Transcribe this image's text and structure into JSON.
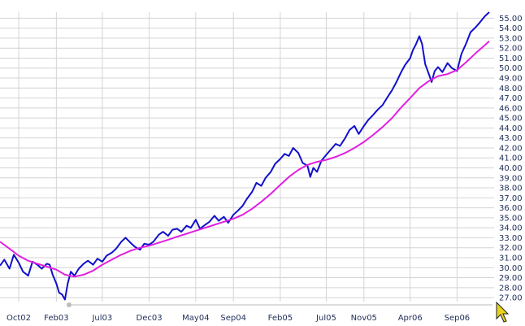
{
  "chart_data": {
    "type": "line",
    "title": "",
    "xlabel": "",
    "ylabel": "",
    "xlim": [
      "2002-08-01",
      "2006-12-31"
    ],
    "ylim": [
      26.6,
      55.6
    ],
    "y_axis_position": "right",
    "y_ticks": [
      27,
      28,
      29,
      30,
      31,
      32,
      33,
      34,
      35,
      36,
      37,
      38,
      39,
      40,
      41,
      42,
      43,
      44,
      45,
      46,
      47,
      48,
      49,
      50,
      51,
      52,
      53,
      54,
      55
    ],
    "x_ticks": [
      {
        "label": "Oct02",
        "date": "2002-10-01"
      },
      {
        "label": "Feb03",
        "date": "2003-02-01"
      },
      {
        "label": "Jul03",
        "date": "2003-07-01"
      },
      {
        "label": "Dec03",
        "date": "2003-12-01"
      },
      {
        "label": "May04",
        "date": "2004-05-01"
      },
      {
        "label": "Sep04",
        "date": "2004-09-01"
      },
      {
        "label": "Feb05",
        "date": "2005-02-01"
      },
      {
        "label": "Jul05",
        "date": "2005-07-01"
      },
      {
        "label": "Nov05",
        "date": "2005-11-01"
      },
      {
        "label": "Apr06",
        "date": "2006-04-01"
      },
      {
        "label": "Sep06",
        "date": "2006-09-01"
      }
    ],
    "grid": true,
    "series": [
      {
        "color": "#1010cc",
        "points": [
          [
            "2002-08-01",
            30.2
          ],
          [
            "2002-08-15",
            30.8
          ],
          [
            "2002-09-01",
            29.9
          ],
          [
            "2002-09-15",
            31.3
          ],
          [
            "2002-10-01",
            30.5
          ],
          [
            "2002-10-15",
            29.6
          ],
          [
            "2002-11-01",
            29.2
          ],
          [
            "2002-11-15",
            30.6
          ],
          [
            "2002-12-01",
            30.3
          ],
          [
            "2002-12-15",
            29.9
          ],
          [
            "2003-01-01",
            30.4
          ],
          [
            "2003-01-10",
            30.3
          ],
          [
            "2003-01-20",
            29.3
          ],
          [
            "2003-02-01",
            28.4
          ],
          [
            "2003-02-10",
            27.5
          ],
          [
            "2003-02-20",
            27.3
          ],
          [
            "2003-03-01",
            26.8
          ],
          [
            "2003-03-10",
            28.4
          ],
          [
            "2003-03-20",
            29.6
          ],
          [
            "2003-04-01",
            29.2
          ],
          [
            "2003-04-15",
            29.9
          ],
          [
            "2003-05-01",
            30.4
          ],
          [
            "2003-05-15",
            30.7
          ],
          [
            "2003-06-01",
            30.3
          ],
          [
            "2003-06-15",
            30.9
          ],
          [
            "2003-07-01",
            30.6
          ],
          [
            "2003-07-15",
            31.2
          ],
          [
            "2003-08-01",
            31.5
          ],
          [
            "2003-08-15",
            31.9
          ],
          [
            "2003-09-01",
            32.6
          ],
          [
            "2003-09-15",
            33.0
          ],
          [
            "2003-10-01",
            32.5
          ],
          [
            "2003-10-15",
            32.1
          ],
          [
            "2003-11-01",
            31.8
          ],
          [
            "2003-11-15",
            32.4
          ],
          [
            "2003-12-01",
            32.3
          ],
          [
            "2003-12-15",
            32.6
          ],
          [
            "2004-01-01",
            33.3
          ],
          [
            "2004-01-15",
            33.6
          ],
          [
            "2004-02-01",
            33.2
          ],
          [
            "2004-02-15",
            33.8
          ],
          [
            "2004-03-01",
            33.9
          ],
          [
            "2004-03-15",
            33.6
          ],
          [
            "2004-04-01",
            34.2
          ],
          [
            "2004-04-15",
            34.0
          ],
          [
            "2004-05-01",
            34.8
          ],
          [
            "2004-05-15",
            33.9
          ],
          [
            "2004-06-01",
            34.3
          ],
          [
            "2004-06-15",
            34.6
          ],
          [
            "2004-07-01",
            35.2
          ],
          [
            "2004-07-15",
            34.7
          ],
          [
            "2004-08-01",
            35.1
          ],
          [
            "2004-08-15",
            34.5
          ],
          [
            "2004-09-01",
            35.3
          ],
          [
            "2004-09-15",
            35.7
          ],
          [
            "2004-10-01",
            36.2
          ],
          [
            "2004-10-15",
            36.9
          ],
          [
            "2004-11-01",
            37.6
          ],
          [
            "2004-11-15",
            38.5
          ],
          [
            "2004-12-01",
            38.2
          ],
          [
            "2004-12-15",
            39.0
          ],
          [
            "2005-01-01",
            39.6
          ],
          [
            "2005-01-15",
            40.4
          ],
          [
            "2005-02-01",
            40.9
          ],
          [
            "2005-02-15",
            41.4
          ],
          [
            "2005-03-01",
            41.2
          ],
          [
            "2005-03-15",
            42.0
          ],
          [
            "2005-04-01",
            41.5
          ],
          [
            "2005-04-15",
            40.5
          ],
          [
            "2005-05-01",
            40.2
          ],
          [
            "2005-05-10",
            39.1
          ],
          [
            "2005-05-20",
            40.0
          ],
          [
            "2005-06-01",
            39.6
          ],
          [
            "2005-06-15",
            40.7
          ],
          [
            "2005-07-01",
            41.3
          ],
          [
            "2005-07-15",
            41.8
          ],
          [
            "2005-08-01",
            42.4
          ],
          [
            "2005-08-15",
            42.2
          ],
          [
            "2005-09-01",
            43.0
          ],
          [
            "2005-09-15",
            43.8
          ],
          [
            "2005-10-01",
            44.2
          ],
          [
            "2005-10-15",
            43.4
          ],
          [
            "2005-11-01",
            44.2
          ],
          [
            "2005-11-15",
            44.8
          ],
          [
            "2005-12-01",
            45.3
          ],
          [
            "2005-12-15",
            45.8
          ],
          [
            "2006-01-01",
            46.3
          ],
          [
            "2006-01-15",
            47.0
          ],
          [
            "2006-02-01",
            47.8
          ],
          [
            "2006-02-15",
            48.6
          ],
          [
            "2006-03-01",
            49.5
          ],
          [
            "2006-03-15",
            50.3
          ],
          [
            "2006-04-01",
            51.0
          ],
          [
            "2006-04-10",
            51.8
          ],
          [
            "2006-04-20",
            52.4
          ],
          [
            "2006-05-01",
            53.2
          ],
          [
            "2006-05-10",
            52.4
          ],
          [
            "2006-05-20",
            50.4
          ],
          [
            "2006-06-01",
            49.4
          ],
          [
            "2006-06-10",
            48.6
          ],
          [
            "2006-06-20",
            49.7
          ],
          [
            "2006-07-01",
            50.1
          ],
          [
            "2006-07-15",
            49.6
          ],
          [
            "2006-08-01",
            50.5
          ],
          [
            "2006-08-15",
            50.0
          ],
          [
            "2006-09-01",
            49.7
          ],
          [
            "2006-09-15",
            51.4
          ],
          [
            "2006-10-01",
            52.5
          ],
          [
            "2006-10-15",
            53.6
          ],
          [
            "2006-11-01",
            54.1
          ],
          [
            "2006-11-15",
            54.6
          ],
          [
            "2006-12-01",
            55.2
          ],
          [
            "2006-12-15",
            55.6
          ]
        ]
      },
      {
        "color": "#e020e0",
        "points": [
          [
            "2002-08-01",
            32.6
          ],
          [
            "2002-09-01",
            31.9
          ],
          [
            "2002-10-01",
            31.2
          ],
          [
            "2002-11-01",
            30.7
          ],
          [
            "2002-12-01",
            30.4
          ],
          [
            "2003-01-01",
            30.1
          ],
          [
            "2003-02-01",
            29.8
          ],
          [
            "2003-03-01",
            29.3
          ],
          [
            "2003-04-01",
            29.1
          ],
          [
            "2003-05-01",
            29.3
          ],
          [
            "2003-06-01",
            29.7
          ],
          [
            "2003-07-01",
            30.3
          ],
          [
            "2003-08-01",
            30.8
          ],
          [
            "2003-09-01",
            31.3
          ],
          [
            "2003-10-01",
            31.7
          ],
          [
            "2003-11-01",
            32.0
          ],
          [
            "2003-12-01",
            32.2
          ],
          [
            "2004-01-01",
            32.5
          ],
          [
            "2004-02-01",
            32.8
          ],
          [
            "2004-03-01",
            33.1
          ],
          [
            "2004-04-01",
            33.4
          ],
          [
            "2004-05-01",
            33.7
          ],
          [
            "2004-06-01",
            34.0
          ],
          [
            "2004-07-01",
            34.3
          ],
          [
            "2004-08-01",
            34.6
          ],
          [
            "2004-09-01",
            34.9
          ],
          [
            "2004-10-01",
            35.3
          ],
          [
            "2004-11-01",
            35.9
          ],
          [
            "2004-12-01",
            36.6
          ],
          [
            "2005-01-01",
            37.4
          ],
          [
            "2005-02-01",
            38.3
          ],
          [
            "2005-03-01",
            39.1
          ],
          [
            "2005-04-01",
            39.8
          ],
          [
            "2005-05-01",
            40.3
          ],
          [
            "2005-06-01",
            40.6
          ],
          [
            "2005-07-01",
            40.8
          ],
          [
            "2005-08-01",
            41.1
          ],
          [
            "2005-09-01",
            41.5
          ],
          [
            "2005-10-01",
            42.0
          ],
          [
            "2005-11-01",
            42.6
          ],
          [
            "2005-12-01",
            43.3
          ],
          [
            "2006-01-01",
            44.1
          ],
          [
            "2006-02-01",
            45.0
          ],
          [
            "2006-03-01",
            46.0
          ],
          [
            "2006-04-01",
            47.0
          ],
          [
            "2006-05-01",
            48.0
          ],
          [
            "2006-06-01",
            48.7
          ],
          [
            "2006-07-01",
            49.2
          ],
          [
            "2006-08-01",
            49.4
          ],
          [
            "2006-09-01",
            49.8
          ],
          [
            "2006-10-01",
            50.6
          ],
          [
            "2006-11-01",
            51.5
          ],
          [
            "2006-12-01",
            52.3
          ],
          [
            "2006-12-15",
            52.7
          ]
        ]
      }
    ]
  },
  "colors": {
    "grid": "#d4d4d4",
    "axis_labels": "#1f2d57",
    "scroll_track": "#dddddd",
    "scroll_handle": "#bdbdbd",
    "cursor": "#e8d21b"
  },
  "icons": {
    "scroll_handle": "circle-handle",
    "cursor": "arrow-pointer-icon"
  }
}
